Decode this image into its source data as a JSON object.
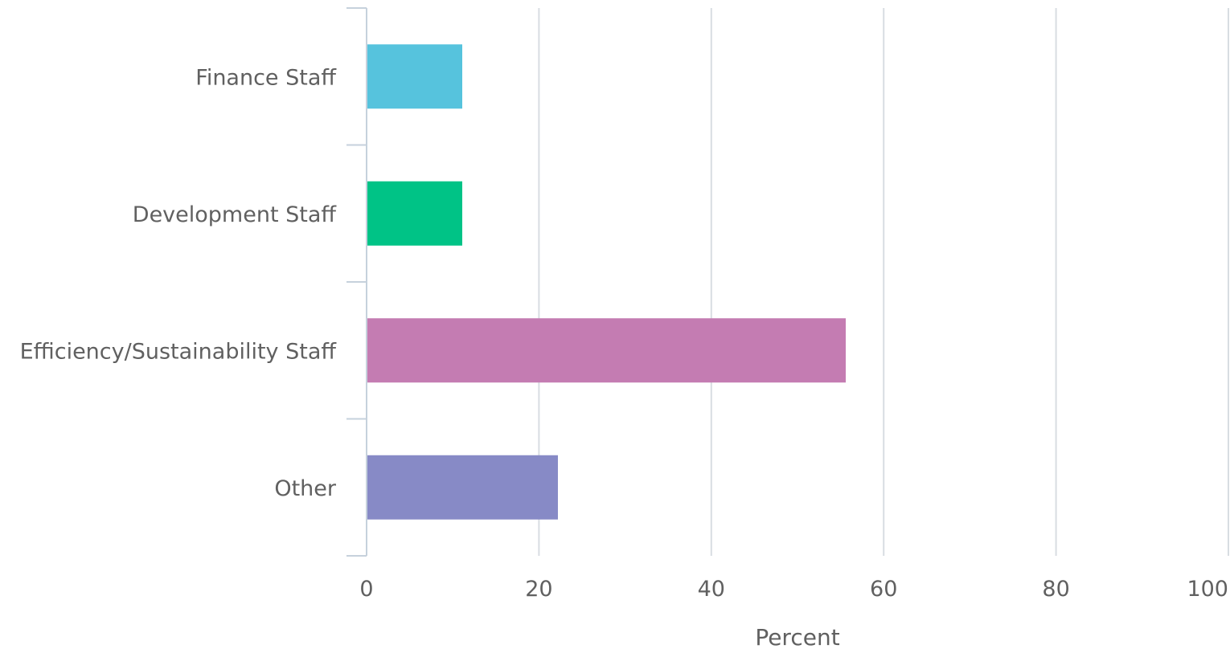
{
  "chart_data": {
    "type": "bar",
    "orientation": "horizontal",
    "categories": [
      "Finance Staff",
      "Development Staff",
      "Efficiency/Sustainability Staff",
      "Other"
    ],
    "values": [
      11.1,
      11.1,
      55.6,
      22.2
    ],
    "colors": [
      "#56c3dd",
      "#00c386",
      "#c47cb2",
      "#878ac6"
    ],
    "xlabel": "Percent",
    "ylabel": "",
    "xlim": [
      0,
      100
    ],
    "xticks": [
      "0",
      "20",
      "40",
      "60",
      "80",
      "100"
    ],
    "grid": true,
    "legend": false
  }
}
